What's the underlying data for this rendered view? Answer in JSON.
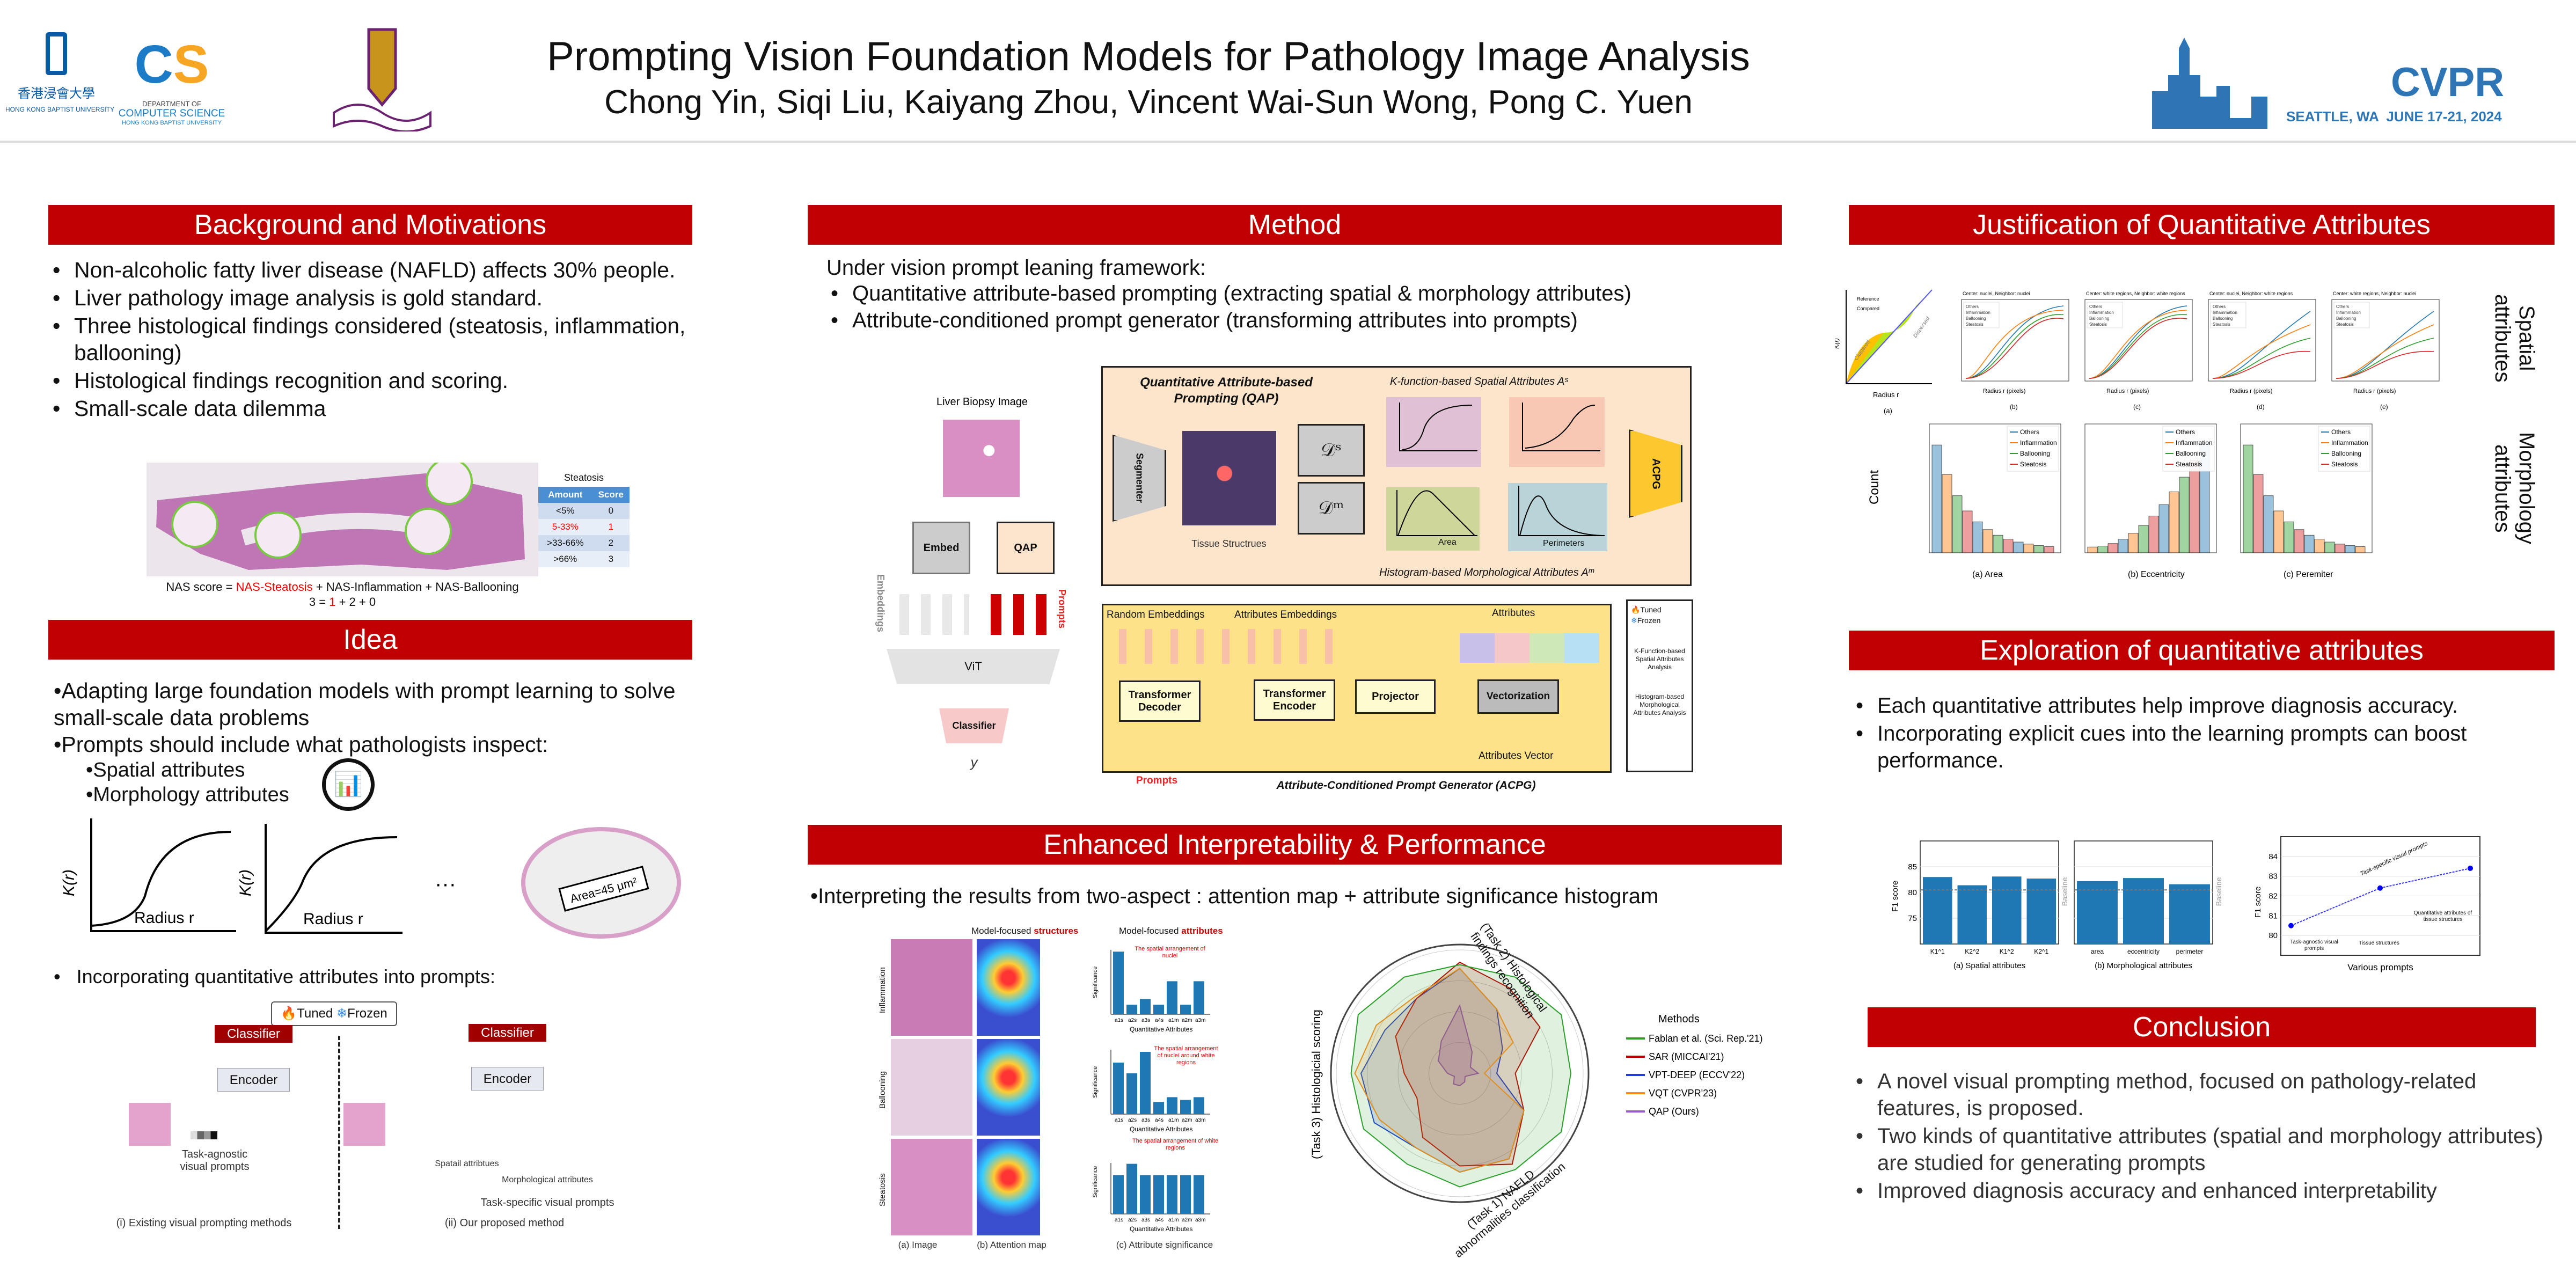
{
  "header": {
    "title": "Prompting Vision Foundation Models for Pathology Image Analysis",
    "authors": "Chong Yin, Siqi Liu, Kaiyang Zhou, Vincent Wai-Sun Wong, Pong C. Yuen",
    "logo_hkbu_cn": "香港浸會大學",
    "logo_hkbu_en": "HONG KONG BAPTIST UNIVERSITY",
    "logo_cs_l1": "DEPARTMENT OF",
    "logo_cs_l2": "COMPUTER SCIENCE",
    "logo_cs_l3": "HONG KONG BAPTIST UNIVERSITY",
    "cvpr": "CVPR",
    "cvpr_sub": "SEATTLE, WA  JUNE 17-21, 2024"
  },
  "colors": {
    "accent": "#c00000",
    "bar": "#1f77b4",
    "cvpr": "#2e75b6"
  },
  "background": {
    "title": "Background and Motivations",
    "bullets": [
      "Non-alcoholic fatty liver disease (NAFLD) affects 30% people.",
      "Liver pathology image analysis is gold standard.",
      "Three histological findings considered (steatosis, inflammation, ballooning)",
      "Histological findings recognition and scoring.",
      "Small-scale data dilemma"
    ],
    "table_title": "Steatosis",
    "table_headers": [
      "Amount",
      "Score"
    ],
    "table_rows": [
      [
        "<5%",
        "0"
      ],
      [
        "5-33%",
        "1"
      ],
      [
        ">33-66%",
        "2"
      ],
      [
        ">66%",
        "3"
      ]
    ],
    "nas_a": "NAS score = ",
    "nas_b": "NAS-Steatosis",
    "nas_c": " + NAS-Inflammation + NAS-Ballooning",
    "nas2_a": "3 = ",
    "nas2_b": "1",
    "nas2_c": " + 2 + 0"
  },
  "idea": {
    "title": "Idea",
    "b1": "Adapting large foundation models with prompt learning to solve small-scale data problems",
    "b2": "Prompts should include what pathologists inspect:",
    "sub": [
      "Spatial attributes",
      "Morphology attributes"
    ],
    "kr": "K(r)",
    "radius": "Radius r",
    "area": "Area=45 μm²",
    "dots": "···",
    "b3": "Incorporating quantitative attributes into prompts:",
    "tuned": "Tuned",
    "frozen": "Frozen",
    "classifier": "Classifier",
    "encoder": "Encoder",
    "task_agnostic": "Task-agnostic visual prompts",
    "spatial": "Spatail attribtues",
    "morph": "Morphological attributes",
    "task_specific": "Task-specific visual prompts",
    "cap_i": "(i) Existing visual prompting methods",
    "cap_ii": "(ii) Our proposed method"
  },
  "method": {
    "title": "Method",
    "intro": "Under vision prompt leaning framework:",
    "bullets": [
      "Quantitative attribute-based prompting (extracting spatial & morphology attributes)",
      "Attribute-conditioned prompt generator (transforming attributes into prompts)"
    ],
    "liver": "Liver Biopsy Image",
    "embed": "Embed",
    "qap": "QAP",
    "embeddings": "Embeddings",
    "prompts": "Prompts",
    "vit": "ViT",
    "classifier": "Classifier",
    "y": "y",
    "qap_title": "Quantitative Attribute-based Prompting (QAP)",
    "segmenter": "Segmenter",
    "tissue": "Tissue Structrues",
    "ds": "𝒟ˢ",
    "dm": "𝒟ᵐ",
    "kfunc": "K-function-based Spatial Attributes Aˢ",
    "hist": "Histogram-based Morphological Attributes Aᵐ",
    "area": "Area",
    "perimeters": "Perimeters",
    "acpg": "ACPG",
    "random": "Random Embeddings",
    "attr_emb": "Attributes Embeddings",
    "attributes": "Attributes",
    "decoder": "Transformer Decoder",
    "encoder": "Transformer Encoder",
    "projector": "Projector",
    "vectorization": "Vectorization",
    "attr_vec": "Attributes Vector",
    "acpg_title": "Attribute-Conditioned Prompt Generator (ACPG)",
    "leg_tuned": "Tuned",
    "leg_frozen": "Frozen",
    "leg_k": "K-Function-based Spatial Attributes Analysis",
    "leg_h": "Histogram-based Morphological Attributes Analysis"
  },
  "interp": {
    "title": "Enhanced Interpretability & Performance",
    "intro": "Interpreting the results from two-aspect : attention map + attribute significance histogram",
    "hdr_struct_a": "Model-focused ",
    "hdr_struct_b": "structures",
    "hdr_attr_a": "Model-focused ",
    "hdr_attr_b": "attributes",
    "rows": [
      "Inflammation",
      "Ballooning",
      "Steatosis"
    ],
    "sig_label": "Significance",
    "xlabel": "Quantitative Attributes",
    "tick_labels": [
      "a1s",
      "a2s",
      "a3s",
      "a4s",
      "a1m",
      "a2m",
      "a3m"
    ],
    "notes": [
      "The spatial arrangement of nuclei",
      "The spatial arrangement of nuclei around white regions",
      "The spatial arrangement of white regions"
    ],
    "caps": [
      "(a) Image",
      "(b) Attention map",
      "(c) Attribute significance"
    ],
    "task1": "(Task 1) NAFLD abnormalities classification",
    "task2": "(Task 2) Histological findings recognition",
    "task3": "(Task 3) Histologicial scoring",
    "legend_title": "Methods"
  },
  "justification": {
    "title": "Justification of Quantitative Attributes",
    "side1": "Spatial attributes",
    "side2": "Morphology attributes",
    "k_titles": [
      "Center: nuclei, Neighbor: nuclei",
      "Center: white regions, Neighbor: white regions",
      "Center: nuclei, Neighbor: white regions",
      "Center: white regions, Neighbor: nuclei"
    ],
    "k_caps": [
      "(a)",
      "(b)",
      "(c)",
      "(d)",
      "(e)"
    ],
    "radius": "Radius r",
    "radius_px": "Radius r (pixels)",
    "kr": "K(r)",
    "a_legend": [
      "Reference",
      "Compared"
    ],
    "clustered": "Clustered",
    "dispersed": "Dispersed",
    "classes": [
      "Others",
      "Inflammation",
      "Ballooning",
      "Steatosis"
    ],
    "class_colors": [
      "#1f77b4",
      "#ff7f0e",
      "#2ca02c",
      "#d62728"
    ],
    "h_caps": [
      "(a) Area",
      "(b) Eccentricity",
      "(c) Peremiter"
    ],
    "count": "Count"
  },
  "exploration": {
    "title": "Exploration of quantitative attributes",
    "bullets": [
      "Each quantitative attributes help improve diagnosis accuracy.",
      "Incorporating explicit cues into the learning prompts can boost performance."
    ]
  },
  "chart_data": [
    {
      "type": "bar",
      "title": "",
      "xlabel": "(a) Spatial attributes",
      "ylabel": "F1 score",
      "categories": [
        "K1^1",
        "K2^2",
        "K1^2",
        "K2^1"
      ],
      "values": [
        83.0,
        81.4,
        83.1,
        82.7
      ],
      "baseline": 80.5,
      "baseline_label": "Baseline",
      "ylim": [
        70,
        90
      ],
      "yticks": [
        75,
        80,
        85
      ],
      "grid": true
    },
    {
      "type": "bar",
      "title": "",
      "xlabel": "(b) Morphological attributes",
      "ylabel": "",
      "categories": [
        "area",
        "eccentricity",
        "perimeter"
      ],
      "values": [
        82.2,
        82.8,
        81.6
      ],
      "baseline": 80.5,
      "baseline_label": "Baseline",
      "ylim": [
        70,
        90
      ],
      "grid": true
    },
    {
      "type": "line",
      "xlabel": "Various prompts",
      "ylabel": "F1 score",
      "categories": [
        "Task-agnostic visual prompts",
        "Tissue structures",
        "Quantitative attributes of tissue structures"
      ],
      "values": [
        80.5,
        82.4,
        83.4
      ],
      "ylim": [
        79,
        85
      ],
      "yticks": [
        80,
        81,
        82,
        83,
        84
      ],
      "annotation": "Task-specific visual prompts"
    },
    {
      "type": "bar",
      "title": "Inflammation",
      "ylabel": "Significance",
      "values": [
        0.36,
        0.055,
        0.088,
        0.055,
        0.19,
        0.055,
        0.19
      ],
      "ylim": [
        0,
        0.37
      ]
    },
    {
      "type": "bar",
      "title": "Ballooning",
      "ylabel": "Significance",
      "values": [
        0.24,
        0.19,
        0.29,
        0.057,
        0.079,
        0.066,
        0.079
      ],
      "ylim": [
        0,
        0.3
      ]
    },
    {
      "type": "bar",
      "title": "Steatosis",
      "ylabel": "Significance",
      "values": [
        0.137,
        0.177,
        0.137,
        0.137,
        0.137,
        0.137,
        0.137
      ],
      "ylim": [
        0,
        0.18
      ]
    },
    {
      "type": "radar",
      "series": [
        {
          "name": "Fablan et al. (Sci. Rep.'21)",
          "color": "#2ca02c"
        },
        {
          "name": "SAR (MICCAI'21)",
          "color": "#c00000"
        },
        {
          "name": "VPT-DEEP (ECCV'22)",
          "color": "#1f3fd0"
        },
        {
          "name": "VQT (CVPR'23)",
          "color": "#ff8c1a"
        },
        {
          "name": "QAP (Ours)",
          "color": "#9b59d6"
        }
      ]
    }
  ],
  "conclusion": {
    "title": "Conclusion",
    "bullets": [
      "A novel visual prompting method, focused on pathology-related features, is proposed.",
      "Two kinds of quantitative attributes (spatial and morphology attributes) are studied for generating prompts",
      "Improved diagnosis accuracy and enhanced interpretability"
    ]
  }
}
